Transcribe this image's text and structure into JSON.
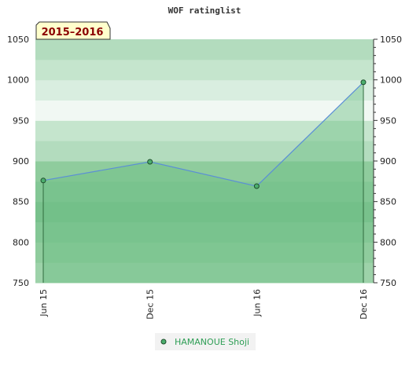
{
  "chart_data": {
    "type": "area",
    "title": "WOF ratinglist",
    "period_label": "2015–2016",
    "categories": [
      "Jun 15",
      "Dec 15",
      "Jun 16",
      "Dec 16"
    ],
    "series": [
      {
        "name": "HAMANOUE Shoji",
        "values": [
          876,
          899,
          869,
          997
        ]
      }
    ],
    "ylim": [
      750,
      1050
    ],
    "y_ticks": [
      750,
      800,
      850,
      900,
      950,
      1000,
      1050
    ],
    "y_axis": "left-and-right",
    "legend_position": "bottom-center",
    "colors": {
      "line": "#5b8fd6",
      "area": "#6dbf84",
      "marker": "#4caf6e",
      "badge_bg": "#ffffcc",
      "legend_text": "#2e9e55"
    }
  }
}
